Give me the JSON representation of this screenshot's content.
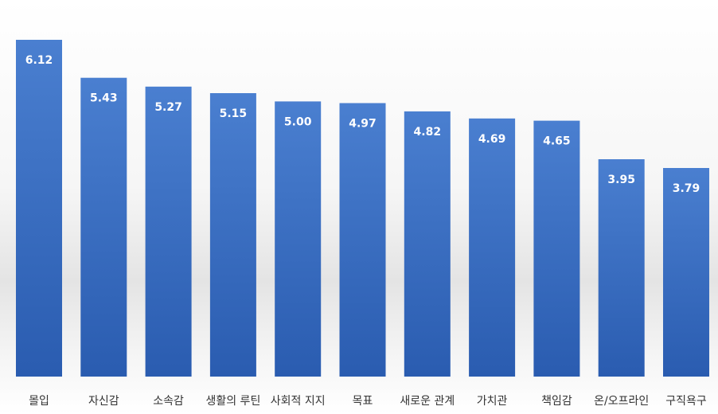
{
  "chart_data": {
    "type": "bar",
    "title": "",
    "xlabel": "",
    "ylabel": "",
    "ylim": [
      0,
      6.6
    ],
    "grid": false,
    "legend": "none",
    "categories": [
      "몰입",
      "자신감",
      "소속감",
      "생활의 루틴",
      "사회적 지지",
      "목표",
      "새로운 관계",
      "가치관",
      "책임감",
      "온/오프라인",
      "구직욕구"
    ],
    "values": [
      6.12,
      5.43,
      5.27,
      5.15,
      5.0,
      4.97,
      4.82,
      4.69,
      4.65,
      3.95,
      3.79
    ],
    "value_labels": [
      "6.12",
      "5.43",
      "5.27",
      "5.15",
      "5.00",
      "4.97",
      "4.82",
      "4.69",
      "4.65",
      "3.95",
      "3.79"
    ]
  },
  "colors": {
    "bar_top": "#4a7fd0",
    "bar_bottom": "#2a5cb0",
    "value_text": "#ffffff",
    "category_text": "#333333"
  }
}
